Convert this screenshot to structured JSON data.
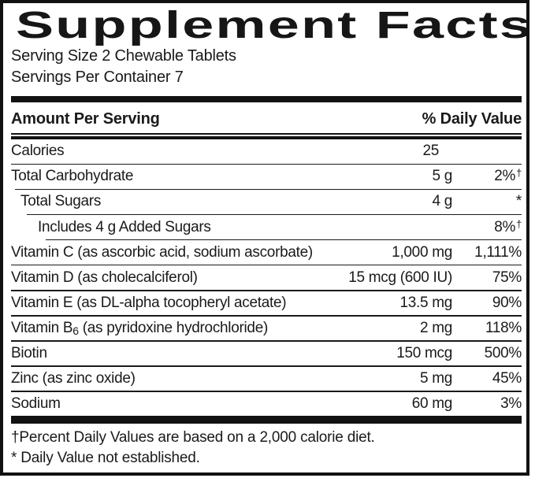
{
  "title": "Supplement Facts",
  "serving": {
    "size": "Serving Size 2 Chewable Tablets",
    "per_container": "Servings Per Container 7"
  },
  "header": {
    "amount_label": "Amount Per Serving",
    "dv_label": "% Daily Value"
  },
  "rows": [
    {
      "name": "Calories",
      "amount": "25",
      "dv": ""
    },
    {
      "name": "Total Carbohydrate",
      "amount": "5 g",
      "dv": "2%",
      "dv_sup": "†"
    },
    {
      "name": "Total Sugars",
      "amount": "4 g",
      "dv": "*"
    },
    {
      "name": "Includes 4 g Added Sugars",
      "amount": "",
      "dv": "8%",
      "dv_sup": "†"
    },
    {
      "name": "Vitamin C (as ascorbic acid, sodium ascorbate)",
      "amount": "1,000 mg",
      "dv": "1,111%"
    },
    {
      "name": "Vitamin D (as cholecalciferol)",
      "amount": "15 mcg (600 IU)",
      "dv": "75%"
    },
    {
      "name": "Vitamin E (as DL-alpha tocopheryl acetate)",
      "amount": "13.5 mg",
      "dv": "90%"
    },
    {
      "name_pre": "Vitamin B",
      "name_sub": "6",
      "name_post": " (as pyridoxine hydrochloride)",
      "amount": "2 mg",
      "dv": "118%"
    },
    {
      "name": "Biotin",
      "amount": "150 mcg",
      "dv": "500%"
    },
    {
      "name": "Zinc (as zinc oxide)",
      "amount": "5 mg",
      "dv": "45%"
    },
    {
      "name": "Sodium",
      "amount": "60 mg",
      "dv": "3%"
    }
  ],
  "footnotes": {
    "percent_dv": "†Percent Daily Values are based on a 2,000 calorie diet.",
    "not_established": "* Daily Value not established."
  },
  "colors": {
    "ink": "#1a1a1a",
    "background": "#ffffff"
  }
}
